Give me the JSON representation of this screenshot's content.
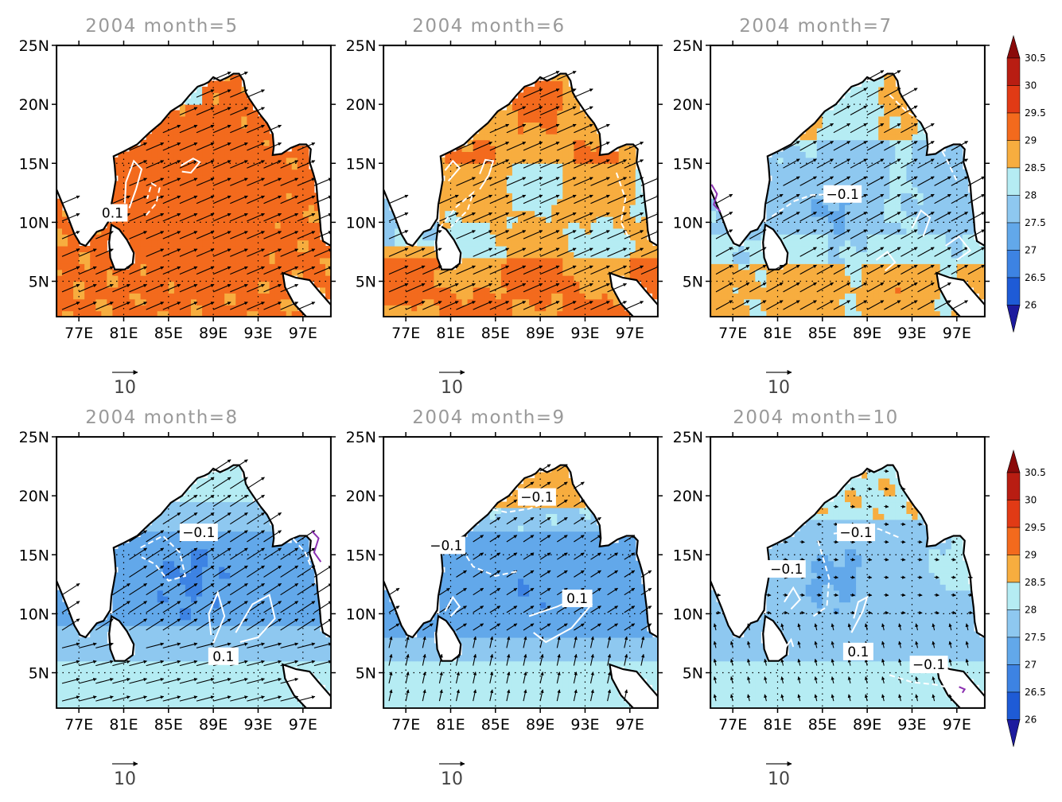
{
  "panels": [
    {
      "title": "2004  month=5",
      "contours": [
        {
          "label": "0.1",
          "dash": false,
          "pts": [
            [
              81.5,
              11.2
            ],
            [
              82.1,
              12.8
            ],
            [
              82.6,
              14.5
            ],
            [
              81.9,
              15.2
            ],
            [
              81.2,
              13.4
            ],
            [
              81.1,
              11.6
            ]
          ]
        },
        {
          "label": "",
          "dash": false,
          "pts": [
            [
              86.1,
              14.8
            ],
            [
              87.2,
              15.4
            ],
            [
              87.8,
              15.1
            ],
            [
              87.0,
              14.2
            ],
            [
              86.2,
              14.3
            ]
          ]
        },
        {
          "label": "",
          "dash": true,
          "pts": [
            [
              83.0,
              10.6
            ],
            [
              83.9,
              11.6
            ],
            [
              84.2,
              12.9
            ],
            [
              83.5,
              13.3
            ],
            [
              83.1,
              12.0
            ]
          ]
        }
      ],
      "labels": [
        {
          "text": "0.1",
          "lon": 80.0,
          "lat": 10.8
        }
      ]
    },
    {
      "title": "2004  month=6",
      "contours": [
        {
          "label": "",
          "dash": false,
          "pts": [
            [
              80.8,
              13.5
            ],
            [
              81.8,
              14.6
            ],
            [
              81.2,
              15.2
            ],
            [
              80.5,
              14.4
            ]
          ]
        },
        {
          "label": "",
          "dash": false,
          "pts": [
            [
              83.6,
              12.8
            ],
            [
              84.4,
              14.0
            ],
            [
              84.8,
              15.2
            ],
            [
              84.1,
              15.3
            ],
            [
              83.6,
              14.1
            ]
          ]
        },
        {
          "label": "",
          "dash": true,
          "pts": [
            [
              80.0,
              9.5
            ],
            [
              81.5,
              11.3
            ],
            [
              83.0,
              12.5
            ],
            [
              82.5,
              11.0
            ],
            [
              81.0,
              9.6
            ]
          ]
        },
        {
          "label": "",
          "dash": true,
          "pts": [
            [
              95.8,
              14.2
            ],
            [
              96.6,
              12.0
            ],
            [
              96.2,
              10.0
            ],
            [
              97.0,
              8.5
            ]
          ]
        }
      ],
      "labels": []
    },
    {
      "title": "2004  month=7",
      "contours": [
        {
          "label": "",
          "dash": true,
          "pts": [
            [
              80.5,
              10.5
            ],
            [
              82.5,
              11.8
            ],
            [
              84.0,
              12.3
            ],
            [
              86.0,
              12.4
            ]
          ]
        },
        {
          "label": "",
          "dash": false,
          "pts": [
            [
              89.8,
              6.8
            ],
            [
              90.8,
              7.5
            ],
            [
              91.5,
              6.6
            ],
            [
              90.6,
              5.9
            ]
          ]
        },
        {
          "label": "",
          "dash": false,
          "pts": [
            [
              93.0,
              9.5
            ],
            [
              93.8,
              11.0
            ],
            [
              94.6,
              10.4
            ],
            [
              94.0,
              8.8
            ]
          ]
        },
        {
          "label": "",
          "dash": true,
          "pts": [
            [
              91.0,
              20.8
            ],
            [
              92.5,
              19.4
            ],
            [
              94.0,
              18.5
            ],
            [
              95.0,
              17.2
            ],
            [
              96.0,
              15.5
            ],
            [
              97.0,
              13.5
            ]
          ]
        },
        {
          "label": "",
          "dash": false,
          "pts": [
            [
              96.0,
              8.0
            ],
            [
              97.2,
              8.8
            ],
            [
              98.2,
              7.6
            ],
            [
              97.0,
              6.8
            ]
          ]
        }
      ],
      "labels": [
        {
          "text": "−0.1",
          "lon": 86.8,
          "lat": 12.4
        }
      ]
    },
    {
      "title": "2004  month=8",
      "contours": [
        {
          "label": "",
          "dash": true,
          "pts": [
            [
              82.5,
              15.6
            ],
            [
              84.5,
              16.6
            ],
            [
              86.0,
              15.2
            ],
            [
              86.5,
              13.2
            ],
            [
              85.0,
              12.8
            ],
            [
              83.8,
              14.2
            ],
            [
              82.6,
              14.8
            ]
          ]
        },
        {
          "label": "",
          "dash": false,
          "pts": [
            [
              89.0,
              7.5
            ],
            [
              90.0,
              9.8
            ],
            [
              89.4,
              11.8
            ],
            [
              88.6,
              10.0
            ],
            [
              88.8,
              8.2
            ]
          ]
        },
        {
          "label": "",
          "dash": false,
          "pts": [
            [
              91.0,
              8.4
            ],
            [
              92.5,
              10.8
            ],
            [
              94.0,
              11.6
            ],
            [
              94.5,
              9.6
            ],
            [
              93.0,
              8.0
            ],
            [
              91.4,
              7.6
            ]
          ]
        },
        {
          "label": "",
          "dash": true,
          "pts": [
            [
              95.0,
              18.3
            ],
            [
              96.0,
              16.5
            ],
            [
              97.2,
              15.2
            ],
            [
              97.8,
              13.8
            ]
          ]
        }
      ],
      "labels": [
        {
          "text": "−0.1",
          "lon": 87.7,
          "lat": 16.9
        },
        {
          "text": "0.1",
          "lon": 89.9,
          "lat": 6.4
        }
      ]
    },
    {
      "title": "2004  month=9",
      "contours": [
        {
          "label": "",
          "dash": true,
          "pts": [
            [
              84.0,
              19.0
            ],
            [
              86.0,
              18.6
            ],
            [
              88.0,
              18.9
            ],
            [
              90.0,
              19.6
            ]
          ]
        },
        {
          "label": "",
          "dash": true,
          "pts": [
            [
              82.0,
              15.5
            ],
            [
              83.0,
              14.0
            ],
            [
              85.0,
              13.2
            ],
            [
              87.0,
              13.6
            ]
          ]
        },
        {
          "label": "",
          "dash": false,
          "pts": [
            [
              80.5,
              10.2
            ],
            [
              81.2,
              11.4
            ],
            [
              81.8,
              10.6
            ],
            [
              81.0,
              9.8
            ]
          ]
        },
        {
          "label": "",
          "dash": false,
          "pts": [
            [
              88.0,
              9.8
            ],
            [
              90.5,
              10.6
            ],
            [
              92.8,
              11.6
            ],
            [
              93.6,
              10.8
            ],
            [
              91.8,
              8.8
            ],
            [
              89.5,
              7.6
            ],
            [
              88.4,
              8.4
            ]
          ]
        }
      ],
      "labels": [
        {
          "text": "−0.1",
          "lon": 88.7,
          "lat": 19.9
        },
        {
          "text": "−0.1",
          "lon": 80.6,
          "lat": 15.8
        },
        {
          "text": "0.1",
          "lon": 92.3,
          "lat": 11.3
        }
      ]
    },
    {
      "title": "2004  month=10",
      "contours": [
        {
          "label": "",
          "dash": true,
          "pts": [
            [
              86.0,
              16.8
            ],
            [
              88.0,
              17.0
            ],
            [
              90.0,
              17.2
            ],
            [
              92.0,
              16.4
            ]
          ]
        },
        {
          "label": "",
          "dash": true,
          "pts": [
            [
              84.6,
              16.2
            ],
            [
              85.6,
              13.0
            ],
            [
              85.4,
              10.6
            ],
            [
              84.2,
              9.8
            ]
          ]
        },
        {
          "label": "",
          "dash": false,
          "pts": [
            [
              81.6,
              11.0
            ],
            [
              82.4,
              12.2
            ],
            [
              83.0,
              11.2
            ],
            [
              82.2,
              10.4
            ]
          ]
        },
        {
          "label": "",
          "dash": false,
          "pts": [
            [
              87.6,
              8.4
            ],
            [
              88.6,
              10.2
            ],
            [
              89.0,
              11.4
            ],
            [
              88.2,
              11.0
            ],
            [
              87.8,
              9.6
            ]
          ]
        },
        {
          "label": "",
          "dash": true,
          "pts": [
            [
              91.0,
              4.8
            ],
            [
              93.0,
              4.2
            ],
            [
              95.0,
              4.0
            ],
            [
              97.0,
              3.6
            ]
          ]
        },
        {
          "label": "",
          "dash": false,
          "pts": [
            [
              81.6,
              7.0
            ],
            [
              82.2,
              7.8
            ],
            [
              82.4,
              7.2
            ]
          ]
        }
      ],
      "labels": [
        {
          "text": "−0.1",
          "lon": 88.0,
          "lat": 16.9
        },
        {
          "text": "−0.1",
          "lon": 81.8,
          "lat": 13.8
        },
        {
          "text": "0.1",
          "lon": 88.2,
          "lat": 6.8
        },
        {
          "text": "−0.1",
          "lon": 94.5,
          "lat": 5.7
        }
      ]
    }
  ],
  "axes": {
    "x_ticks": [
      {
        "value": 77,
        "label": "77E"
      },
      {
        "value": 81,
        "label": "81E"
      },
      {
        "value": 85,
        "label": "85E"
      },
      {
        "value": 89,
        "label": "89E"
      },
      {
        "value": 93,
        "label": "93E"
      },
      {
        "value": 97,
        "label": "97E"
      }
    ],
    "y_ticks": [
      {
        "value": 5,
        "label": "5N"
      },
      {
        "value": 10,
        "label": "10N"
      },
      {
        "value": 15,
        "label": "15N"
      },
      {
        "value": 20,
        "label": "20N"
      },
      {
        "value": 25,
        "label": "25N"
      }
    ],
    "lon_range": [
      75,
      99.5
    ],
    "lat_range": [
      2,
      25
    ],
    "grid": "dotted"
  },
  "reference_vector": {
    "label": "10"
  },
  "colorbar": {
    "labels": [
      "30.5",
      "30",
      "29.5",
      "29",
      "28.5",
      "28",
      "27.5",
      "27",
      "26.5",
      "26"
    ],
    "colors": [
      "#8a0a0a",
      "#b81d12",
      "#e13a15",
      "#f36a1d",
      "#f7ad3f",
      "#b5ecf3",
      "#8ec8f0",
      "#62a8ea",
      "#3d83e3",
      "#1e5bd6",
      "#1d1b9e"
    ],
    "bounds": [
      26,
      26.5,
      27,
      27.5,
      28,
      28.5,
      29,
      29.5,
      30,
      30.5
    ]
  }
}
